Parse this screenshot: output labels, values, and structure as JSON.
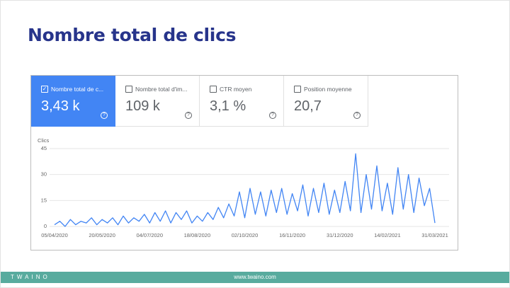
{
  "header": {
    "title": "Nombre total de clics"
  },
  "metrics": [
    {
      "label": "Nombre total de c...",
      "value": "3,43 k"
    },
    {
      "label": "Nombre total d'im...",
      "value": "109 k"
    },
    {
      "label": "CTR moyen",
      "value": "3,1 %"
    },
    {
      "label": "Position moyenne",
      "value": "20,7"
    }
  ],
  "chart_data": {
    "type": "line",
    "y_label": "Clics",
    "color": "#4285f4",
    "categories": [
      "05/04/2020",
      null,
      null,
      null,
      null,
      null,
      null,
      null,
      null,
      "20/05/2020",
      null,
      null,
      null,
      null,
      null,
      null,
      null,
      null,
      "04/07/2020",
      null,
      null,
      null,
      null,
      null,
      null,
      null,
      null,
      "18/08/2020",
      null,
      null,
      null,
      null,
      null,
      null,
      null,
      null,
      "02/10/2020",
      null,
      null,
      null,
      null,
      null,
      null,
      null,
      null,
      "16/11/2020",
      null,
      null,
      null,
      null,
      null,
      null,
      null,
      null,
      "31/12/2020",
      null,
      null,
      null,
      null,
      null,
      null,
      null,
      null,
      "14/02/2021",
      null,
      null,
      null,
      null,
      null,
      null,
      null,
      null,
      "31/03/2021"
    ],
    "values": [
      1,
      3,
      0,
      4,
      1,
      3,
      2,
      5,
      1,
      4,
      2,
      5,
      1,
      6,
      2,
      5,
      3,
      7,
      2,
      8,
      3,
      9,
      2,
      8,
      4,
      9,
      2,
      6,
      3,
      8,
      4,
      11,
      5,
      13,
      6,
      20,
      5,
      22,
      7,
      20,
      6,
      21,
      8,
      22,
      7,
      19,
      9,
      24,
      6,
      22,
      8,
      25,
      7,
      21,
      8,
      26,
      9,
      42,
      8,
      30,
      10,
      35,
      9,
      25,
      7,
      34,
      10,
      30,
      8,
      28,
      12,
      22,
      2
    ],
    "ylim": [
      0,
      45
    ],
    "yticks": [
      0,
      15,
      30,
      45
    ],
    "grid": true
  },
  "footer": {
    "brand": "TWAINO",
    "url": "www.twaino.com"
  }
}
